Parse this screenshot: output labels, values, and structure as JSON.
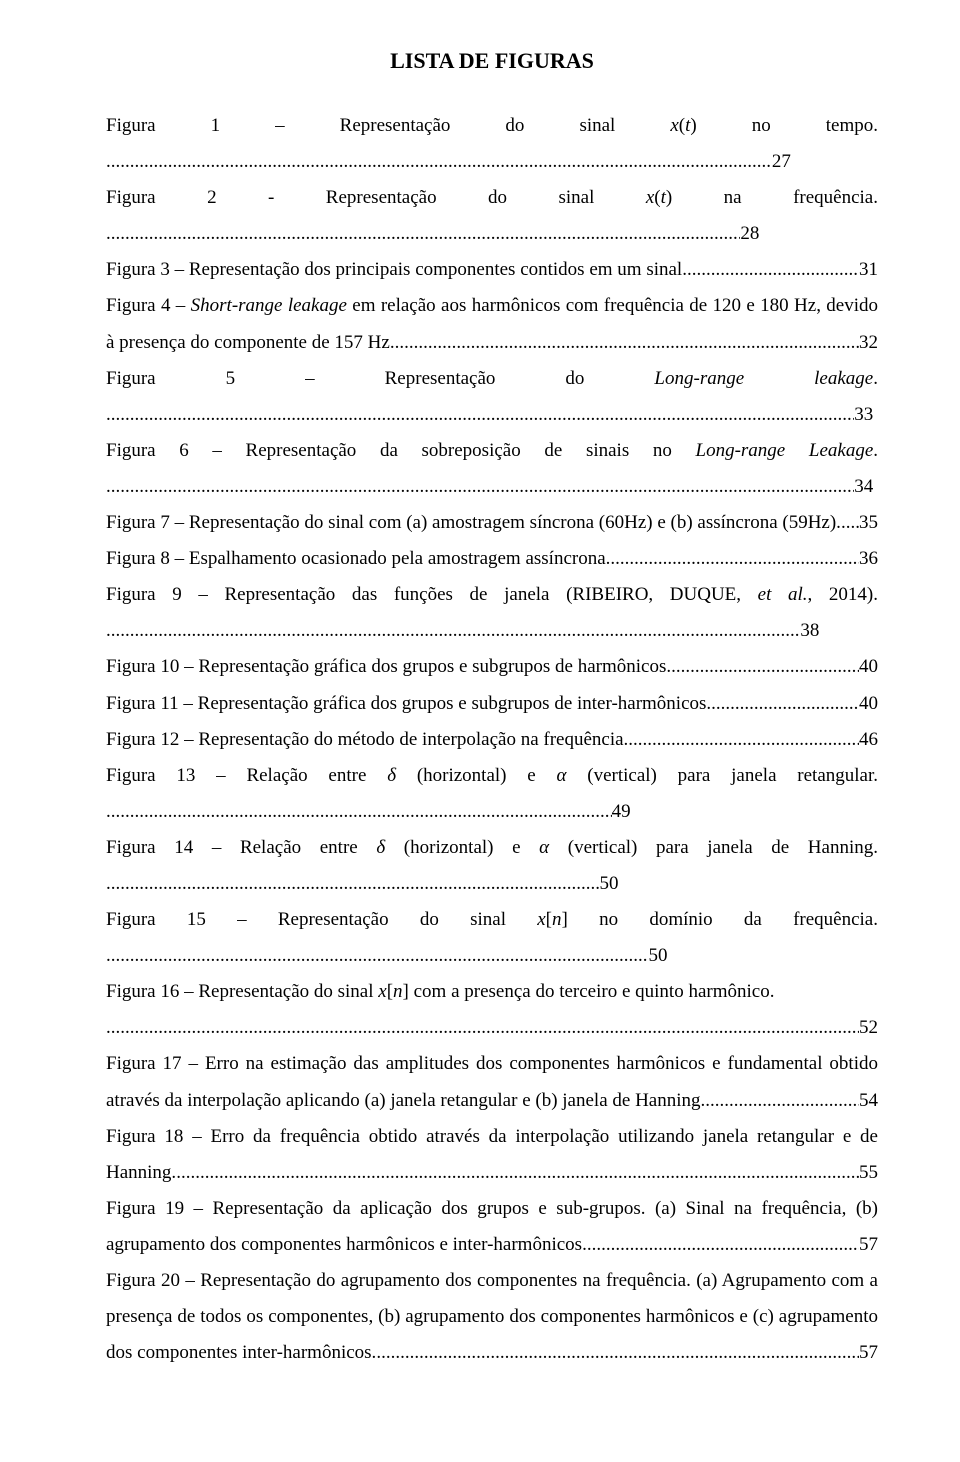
{
  "title": "LISTA DE FIGURAS",
  "entries": [
    {
      "label_html": "Figura 1 – Representação do sinal <span class=\"italic\">x</span>(<span class=\"italic\">t</span>) no tempo.",
      "page": "27"
    },
    {
      "label_html": "Figura 2 - Representação do sinal <span class=\"italic\">x</span>(<span class=\"italic\">t</span>) na frequência.",
      "page": "28"
    },
    {
      "label_html": "Figura 3 – Representação dos principais componentes contidos em um sinal.",
      "page": "31"
    },
    {
      "label_html": "Figura 4 – <span class=\"italic\">Short-range leakage</span>  em relação aos harmônicos com frequência de 120 e 180 Hz, devido à presença do componente de 157 Hz.",
      "page": "32"
    },
    {
      "label_html": "Figura 5 – Representação do <span class=\"italic\">Long-range leakage</span>.",
      "page": "33"
    },
    {
      "label_html": "Figura 6 – Representação da sobreposição de sinais no <span class=\"italic\">Long-range Leakage</span>.",
      "page": "34"
    },
    {
      "label_html": "Figura 7 – Representação do sinal com (a) amostragem síncrona (60Hz) e (b) assíncrona (59Hz).",
      "page": "35"
    },
    {
      "label_html": "Figura 8 – Espalhamento ocasionado pela amostragem assíncrona.",
      "page": "36"
    },
    {
      "label_html": "Figura 9 – Representação das funções de janela (RIBEIRO, DUQUE, <span class=\"italic\">et al.</span>, 2014).",
      "page": "38"
    },
    {
      "label_html": "Figura 10 – Representação gráfica dos grupos e subgrupos de harmônicos.",
      "page": "40"
    },
    {
      "label_html": "Figura 11 – Representação gráfica dos grupos e subgrupos de inter-harmônicos.",
      "page": "40"
    },
    {
      "label_html": "Figura 12 – Representação do método de interpolação na frequência.",
      "page": "46"
    },
    {
      "label_html": "Figura 13 – Relação entre <span class=\"italic\">δ</span>  (horizontal) e <span class=\"italic\">α</span>  (vertical) para janela retangular.",
      "page": "49"
    },
    {
      "label_html": "Figura 14 – Relação entre <span class=\"italic\">δ</span>  (horizontal) e <span class=\"italic\">α</span>  (vertical) para janela de Hanning.",
      "page": "50"
    },
    {
      "label_html": "Figura 15 – Representação do sinal <span class=\"italic\">x</span>[<span class=\"italic\">n</span>] no domínio da frequência.",
      "page": "50"
    },
    {
      "label_html": "Figura 16 – Representação do sinal <span class=\"italic\">x</span>[<span class=\"italic\">n</span>] com a presença do terceiro e quinto harmônico.",
      "page": "52",
      "fullrow_leader": true
    },
    {
      "label_html": "Figura 17 – Erro na estimação das amplitudes  dos componentes harmônicos e fundamental obtido através da interpolação aplicando (a) janela retangular e (b) janela de Hanning.",
      "page": "54"
    },
    {
      "label_html": "Figura 18 – Erro da frequência obtido através da interpolação utilizando janela retangular e de Hanning.",
      "page": "55"
    },
    {
      "label_html": "Figura 19 – Representação da aplicação dos grupos e sub-grupos. (a) Sinal na frequência, (b) agrupamento dos componentes harmônicos e inter-harmônicos.",
      "page": "57"
    },
    {
      "label_html": "Figura 20 – Representação do agrupamento dos componentes na frequência. (a) Agrupamento com a presença de todos os componentes, (b) agrupamento dos componentes harmônicos e (c) agrupamento dos componentes inter-harmônicos.",
      "page": "57"
    }
  ]
}
